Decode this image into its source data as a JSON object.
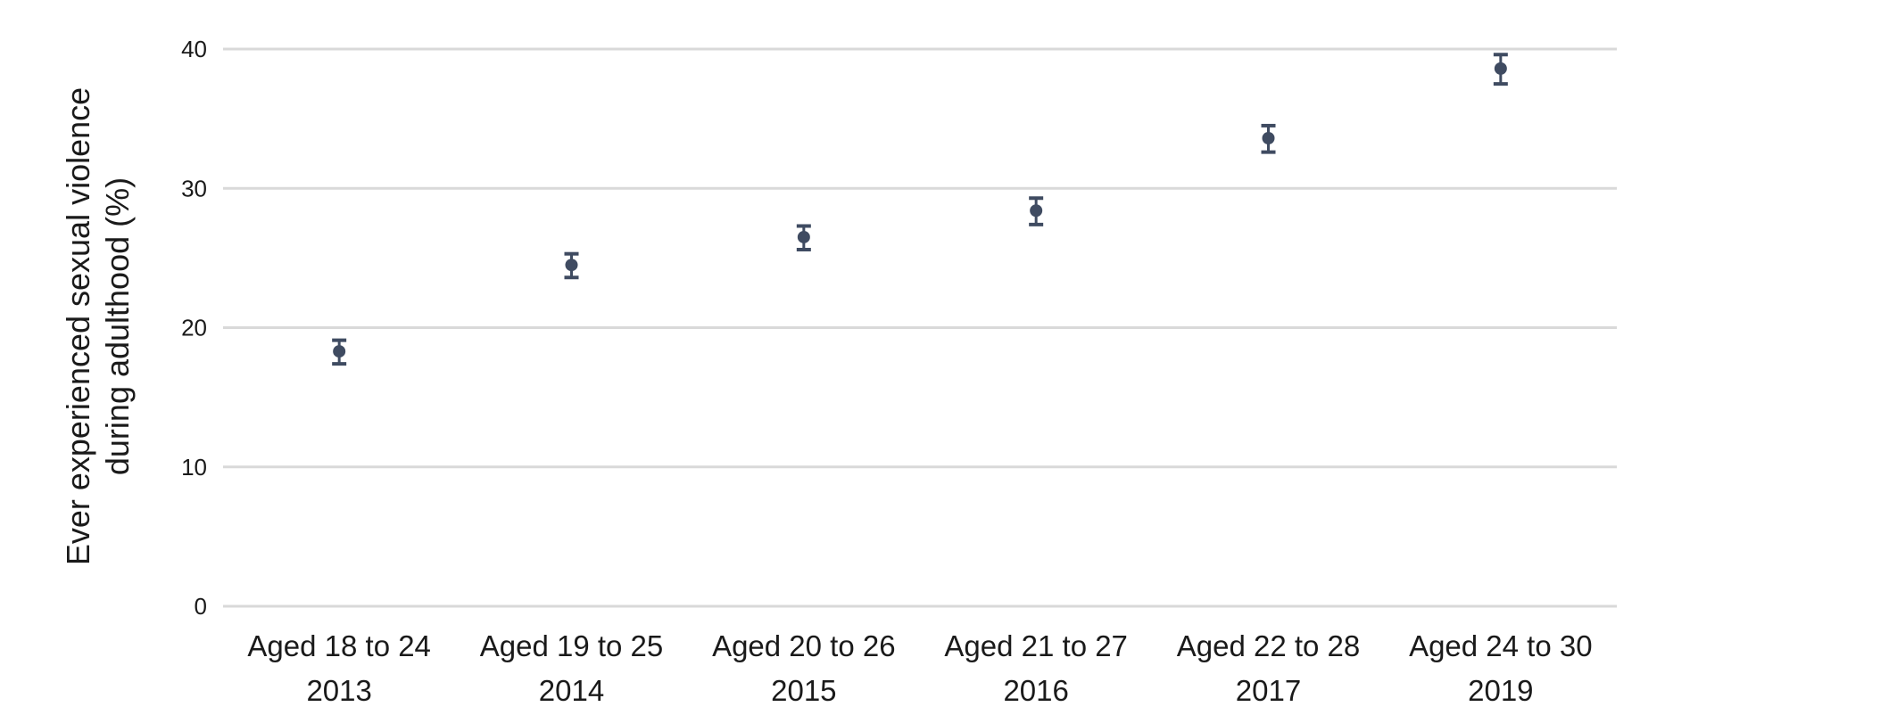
{
  "chart_data": {
    "type": "scatter",
    "title": "",
    "xlabel": "",
    "ylabel_lines": [
      "Ever experienced sexual violence",
      "during adulthood (%)"
    ],
    "ylim": [
      0,
      40
    ],
    "yticks": [
      0,
      10,
      20,
      30,
      40
    ],
    "grid": true,
    "legend": "none",
    "marker_color": "#3f4b61",
    "grid_color": "#d9d9d9",
    "categories": [
      {
        "line1": "Aged 18 to 24",
        "line2": "2013"
      },
      {
        "line1": "Aged 19 to 25",
        "line2": "2014"
      },
      {
        "line1": "Aged 20 to 26",
        "line2": "2015"
      },
      {
        "line1": "Aged 21 to 27",
        "line2": "2016"
      },
      {
        "line1": "Aged 22 to 28",
        "line2": "2017"
      },
      {
        "line1": "Aged 24 to 30",
        "line2": "2019"
      }
    ],
    "series": [
      {
        "values": [
          18.3,
          24.5,
          26.5,
          28.4,
          33.6,
          38.6
        ],
        "lower": [
          17.4,
          23.6,
          25.6,
          27.4,
          32.6,
          37.5
        ],
        "upper": [
          19.1,
          25.3,
          27.3,
          29.3,
          34.5,
          39.6
        ]
      }
    ]
  }
}
